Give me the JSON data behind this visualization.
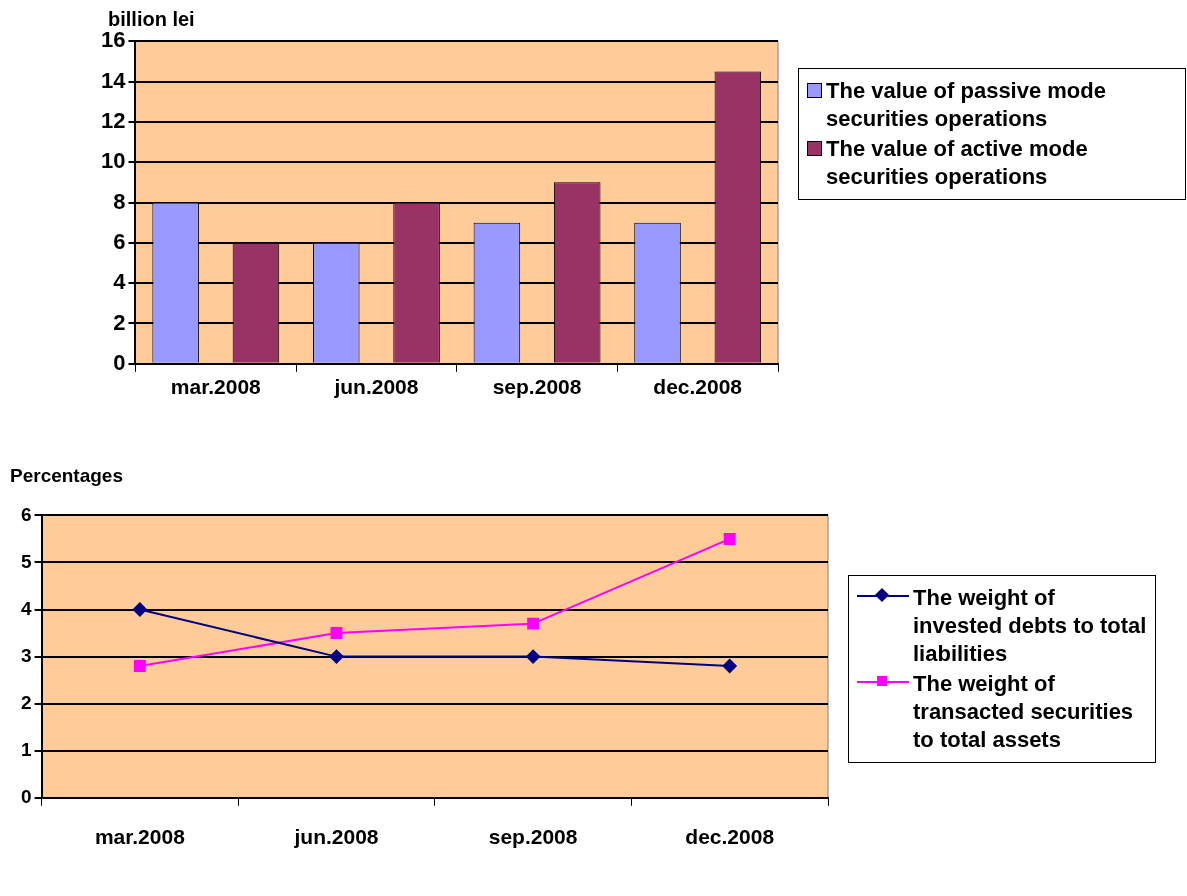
{
  "chart_data": [
    {
      "type": "bar",
      "ylabel": "billion lei",
      "categories": [
        "mar.2008",
        "jun.2008",
        "sep.2008",
        "dec.2008"
      ],
      "series": [
        {
          "name": "The value of passive mode securities operations",
          "color": "#9999ff",
          "values": [
            8,
            6,
            7,
            7
          ]
        },
        {
          "name": "The value of active mode securities operations",
          "color": "#993366",
          "values": [
            6,
            8,
            9,
            14.5
          ]
        }
      ],
      "ylim": [
        0,
        16
      ],
      "yticks": [
        0,
        2,
        4,
        6,
        8,
        10,
        12,
        14,
        16
      ],
      "grid": "y",
      "legend": "right"
    },
    {
      "type": "line",
      "ylabel": "Percentages",
      "categories": [
        "mar.2008",
        "jun.2008",
        "sep.2008",
        "dec.2008"
      ],
      "series": [
        {
          "name": "The weight of invested debts to total liabilities",
          "color": "#000080",
          "marker": "diamond",
          "values": [
            4,
            3,
            3,
            2.8
          ]
        },
        {
          "name": "The weight of transacted securities to total assets",
          "color": "#ff00ff",
          "marker": "square",
          "values": [
            2.8,
            3.5,
            3.7,
            5.5
          ]
        }
      ],
      "ylim": [
        0,
        6
      ],
      "yticks": [
        0,
        1,
        2,
        3,
        4,
        5,
        6
      ],
      "grid": "y",
      "legend": "right"
    }
  ]
}
